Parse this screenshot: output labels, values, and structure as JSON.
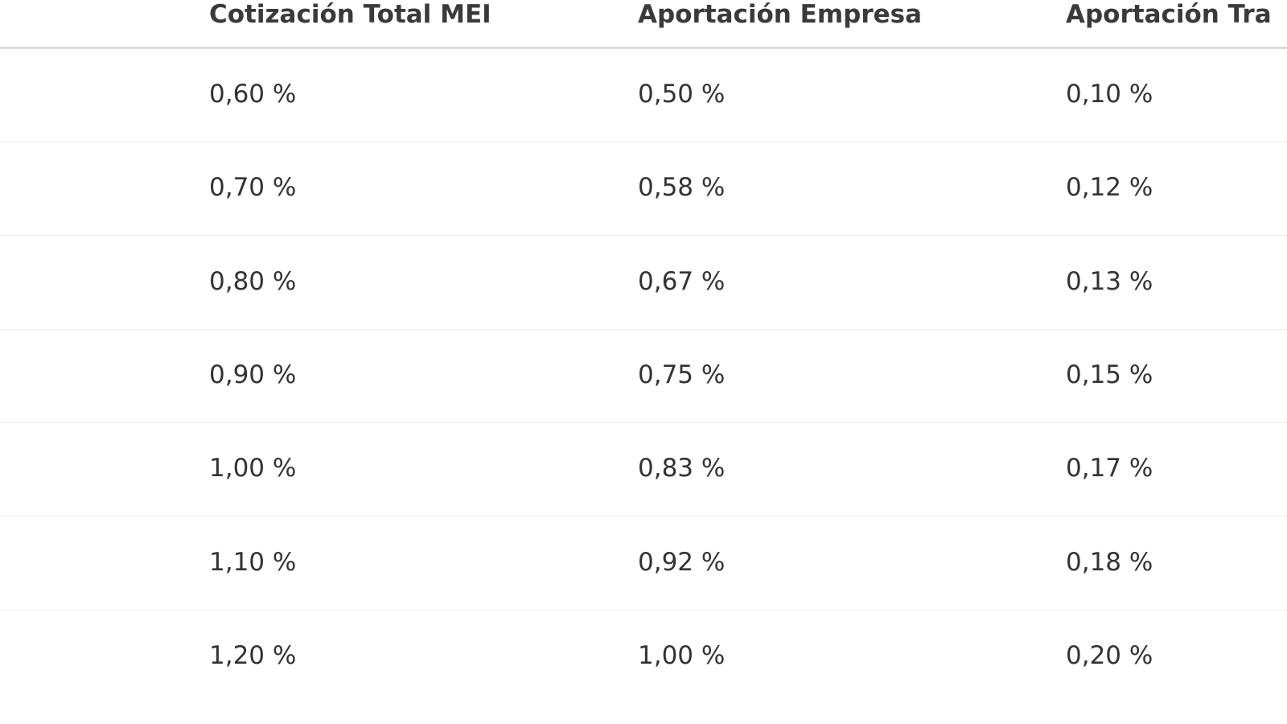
{
  "table": {
    "header": [
      "Cotización Total MEI",
      "Aportación Empresa",
      "Aportación Tra"
    ],
    "rows": [
      [
        "0,60 %",
        "0,50 %",
        "0,10 %"
      ],
      [
        "0,70 %",
        "0,58 %",
        "0,12 %"
      ],
      [
        "0,80 %",
        "0,67 %",
        "0,13 %"
      ],
      [
        "0,90 %",
        "0,75 %",
        "0,15 %"
      ],
      [
        "1,00 %",
        "0,83 %",
        "0,17 %"
      ],
      [
        "1,10 %",
        "0,92 %",
        "0,18 %"
      ],
      [
        "1,20 %",
        "1,00 %",
        "0,20 %"
      ]
    ]
  }
}
